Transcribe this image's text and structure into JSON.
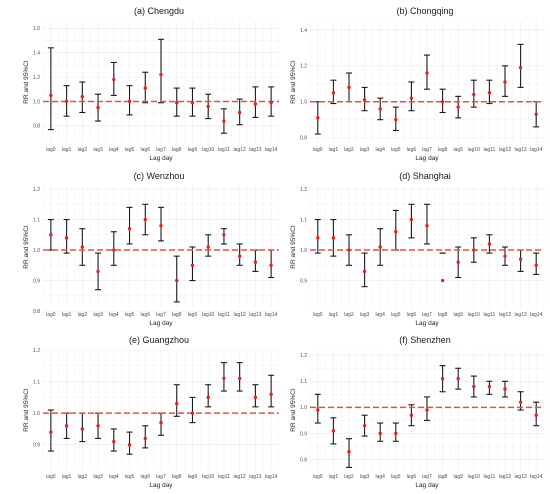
{
  "colors": {
    "background": "#ffffff",
    "grid": "#ebebeb",
    "errorbar": "#1a1a1a",
    "point": "#ee1c1c",
    "refline": "#e8513f"
  },
  "chart_data": [
    {
      "type": "scatter",
      "title": "(a) Chengdu",
      "xlabel": "Lag day",
      "ylabel": "RR and 95%CI",
      "ylim": [
        0.66,
        1.66
      ],
      "yticks": [
        "0.8",
        "1.0",
        "1.2",
        "1.4",
        "1.6"
      ],
      "categories": [
        "lag0",
        "lag1",
        "lag2",
        "lag3",
        "lag4",
        "lag5",
        "lag6",
        "lag7",
        "lag8",
        "lag9",
        "lag10",
        "lag11",
        "lag12",
        "lag13",
        "lag14"
      ],
      "reference": 1.0,
      "rr": [
        1.05,
        1.0,
        1.04,
        0.95,
        1.18,
        1.0,
        1.11,
        1.22,
        0.99,
        0.99,
        0.96,
        0.84,
        0.91,
        0.98,
        0.99
      ],
      "lower": [
        0.77,
        0.88,
        0.91,
        0.84,
        1.05,
        0.89,
        0.99,
        0.99,
        0.88,
        0.88,
        0.86,
        0.74,
        0.81,
        0.87,
        0.88
      ],
      "upper": [
        1.44,
        1.13,
        1.16,
        1.06,
        1.32,
        1.13,
        1.24,
        1.51,
        1.11,
        1.11,
        1.06,
        0.94,
        1.02,
        1.12,
        1.12
      ]
    },
    {
      "type": "scatter",
      "title": "(b) Chongqing",
      "xlabel": "Lag day",
      "ylabel": "RR and 95%CI",
      "ylim": [
        0.77,
        1.45
      ],
      "yticks": [
        "0.8",
        "1.0",
        "1.2",
        "1.4"
      ],
      "categories": [
        "lag0",
        "lag1",
        "lag2",
        "lag3",
        "lag4",
        "lag5",
        "lag6",
        "lag7",
        "lag8",
        "lag9",
        "lag10",
        "lag11",
        "lag12",
        "lag13",
        "lag14"
      ],
      "reference": 1.0,
      "rr": [
        0.91,
        1.05,
        1.08,
        1.01,
        0.96,
        0.9,
        1.02,
        1.16,
        1.0,
        0.97,
        1.04,
        1.05,
        1.11,
        1.19,
        0.93
      ],
      "lower": [
        0.82,
        0.99,
        1.0,
        0.95,
        0.9,
        0.84,
        0.95,
        1.07,
        0.94,
        0.91,
        0.97,
        0.99,
        1.03,
        1.08,
        0.86
      ],
      "upper": [
        1.0,
        1.12,
        1.16,
        1.08,
        1.02,
        0.97,
        1.11,
        1.26,
        1.07,
        1.03,
        1.12,
        1.12,
        1.2,
        1.32,
        1.0
      ]
    },
    {
      "type": "scatter",
      "title": "(c) Wenzhou",
      "xlabel": "Lag day",
      "ylabel": "RR and 95%CI",
      "ylim": [
        0.81,
        1.21
      ],
      "yticks": [
        "0.8",
        "0.9",
        "1.0",
        "1.1",
        "1.2"
      ],
      "categories": [
        "lag0",
        "lag1",
        "lag2",
        "lag3",
        "lag4",
        "lag5",
        "lag6",
        "lag7",
        "lag8",
        "lag9",
        "lag10",
        "lag11",
        "lag12",
        "lag13",
        "lag14"
      ],
      "reference": 1.0,
      "rr": [
        1.05,
        1.04,
        1.01,
        0.93,
        1.0,
        1.07,
        1.1,
        1.08,
        0.9,
        0.95,
        1.01,
        1.05,
        0.98,
        0.96,
        0.95
      ],
      "lower": [
        1.0,
        0.99,
        0.95,
        0.87,
        0.95,
        1.02,
        1.05,
        1.03,
        0.83,
        0.9,
        0.98,
        1.02,
        0.95,
        0.93,
        0.91
      ],
      "upper": [
        1.1,
        1.1,
        1.07,
        0.99,
        1.06,
        1.14,
        1.15,
        1.14,
        0.98,
        1.01,
        1.05,
        1.07,
        1.02,
        1.0,
        1.0
      ]
    },
    {
      "type": "scatter",
      "title": "(d) Shanghai",
      "xlabel": "Lag day",
      "ylabel": "RR and 95%CI",
      "ylim": [
        0.81,
        1.21
      ],
      "yticks": [
        "0.9",
        "1.0",
        "1.1",
        "1.2"
      ],
      "categories": [
        "lag0",
        "lag1",
        "lag2",
        "lag3",
        "lag4",
        "lag5",
        "lag6",
        "lag7",
        "lag8",
        "lag9",
        "lag10",
        "lag11",
        "lag12",
        "lag13",
        "lag14"
      ],
      "reference": 1.0,
      "rr": [
        1.04,
        1.04,
        1.0,
        0.93,
        1.01,
        1.06,
        1.1,
        1.08,
        0.9,
        0.96,
        1.0,
        1.02,
        0.98,
        0.97,
        0.95
      ],
      "lower": [
        0.99,
        0.98,
        0.95,
        0.88,
        0.95,
        1.0,
        1.04,
        1.02,
        0.99,
        0.91,
        0.96,
        0.99,
        0.95,
        0.93,
        0.92
      ],
      "upper": [
        1.1,
        1.1,
        1.05,
        0.99,
        1.07,
        1.13,
        1.15,
        1.15,
        0.99,
        1.01,
        1.04,
        1.05,
        1.01,
        1.0,
        0.99
      ]
    },
    {
      "type": "scatter",
      "title": "(e) Guangzhou",
      "xlabel": "Lag day",
      "ylabel": "RR and 95%CI",
      "ylim": [
        0.82,
        1.2
      ],
      "yticks": [
        "0.9",
        "1.0",
        "1.1",
        "1.2"
      ],
      "categories": [
        "lag0",
        "lag1",
        "lag2",
        "lag3",
        "lag4",
        "lag5",
        "lag6",
        "lag7",
        "lag8",
        "lag9",
        "lag10",
        "lag11",
        "lag12",
        "lag13",
        "lag14"
      ],
      "reference": 1.0,
      "rr": [
        0.94,
        0.96,
        0.95,
        0.96,
        0.91,
        0.9,
        0.92,
        0.97,
        1.03,
        1.0,
        1.05,
        1.11,
        1.11,
        1.05,
        1.06
      ],
      "lower": [
        0.88,
        0.92,
        0.91,
        0.92,
        0.88,
        0.87,
        0.89,
        0.93,
        0.99,
        0.97,
        1.02,
        1.07,
        1.07,
        1.02,
        1.02
      ],
      "upper": [
        1.01,
        1.0,
        1.0,
        1.0,
        0.95,
        0.94,
        0.96,
        1.0,
        1.09,
        1.05,
        1.09,
        1.16,
        1.16,
        1.09,
        1.12
      ]
    },
    {
      "type": "scatter",
      "title": "(f) Shenzhen",
      "xlabel": "Lag day",
      "ylabel": "RR and 95%CI",
      "ylim": [
        0.76,
        1.22
      ],
      "yticks": [
        "0.8",
        "0.9",
        "1.0",
        "1.1",
        "1.2"
      ],
      "categories": [
        "lag0",
        "lag1",
        "lag2",
        "lag3",
        "lag4",
        "lag5",
        "lag6",
        "lag7",
        "lag8",
        "lag9",
        "lag10",
        "lag11",
        "lag12",
        "lag13",
        "lag14"
      ],
      "reference": 1.0,
      "rr": [
        0.99,
        0.91,
        0.83,
        0.93,
        0.9,
        0.9,
        0.97,
        0.99,
        1.11,
        1.11,
        1.08,
        1.08,
        1.07,
        1.02,
        0.97
      ],
      "lower": [
        0.94,
        0.86,
        0.77,
        0.89,
        0.87,
        0.87,
        0.93,
        0.95,
        1.06,
        1.07,
        1.04,
        1.05,
        1.04,
        0.99,
        0.93
      ],
      "upper": [
        1.05,
        0.96,
        0.88,
        0.97,
        0.94,
        0.94,
        1.01,
        1.04,
        1.16,
        1.15,
        1.12,
        1.1,
        1.1,
        1.06,
        1.02
      ]
    }
  ]
}
